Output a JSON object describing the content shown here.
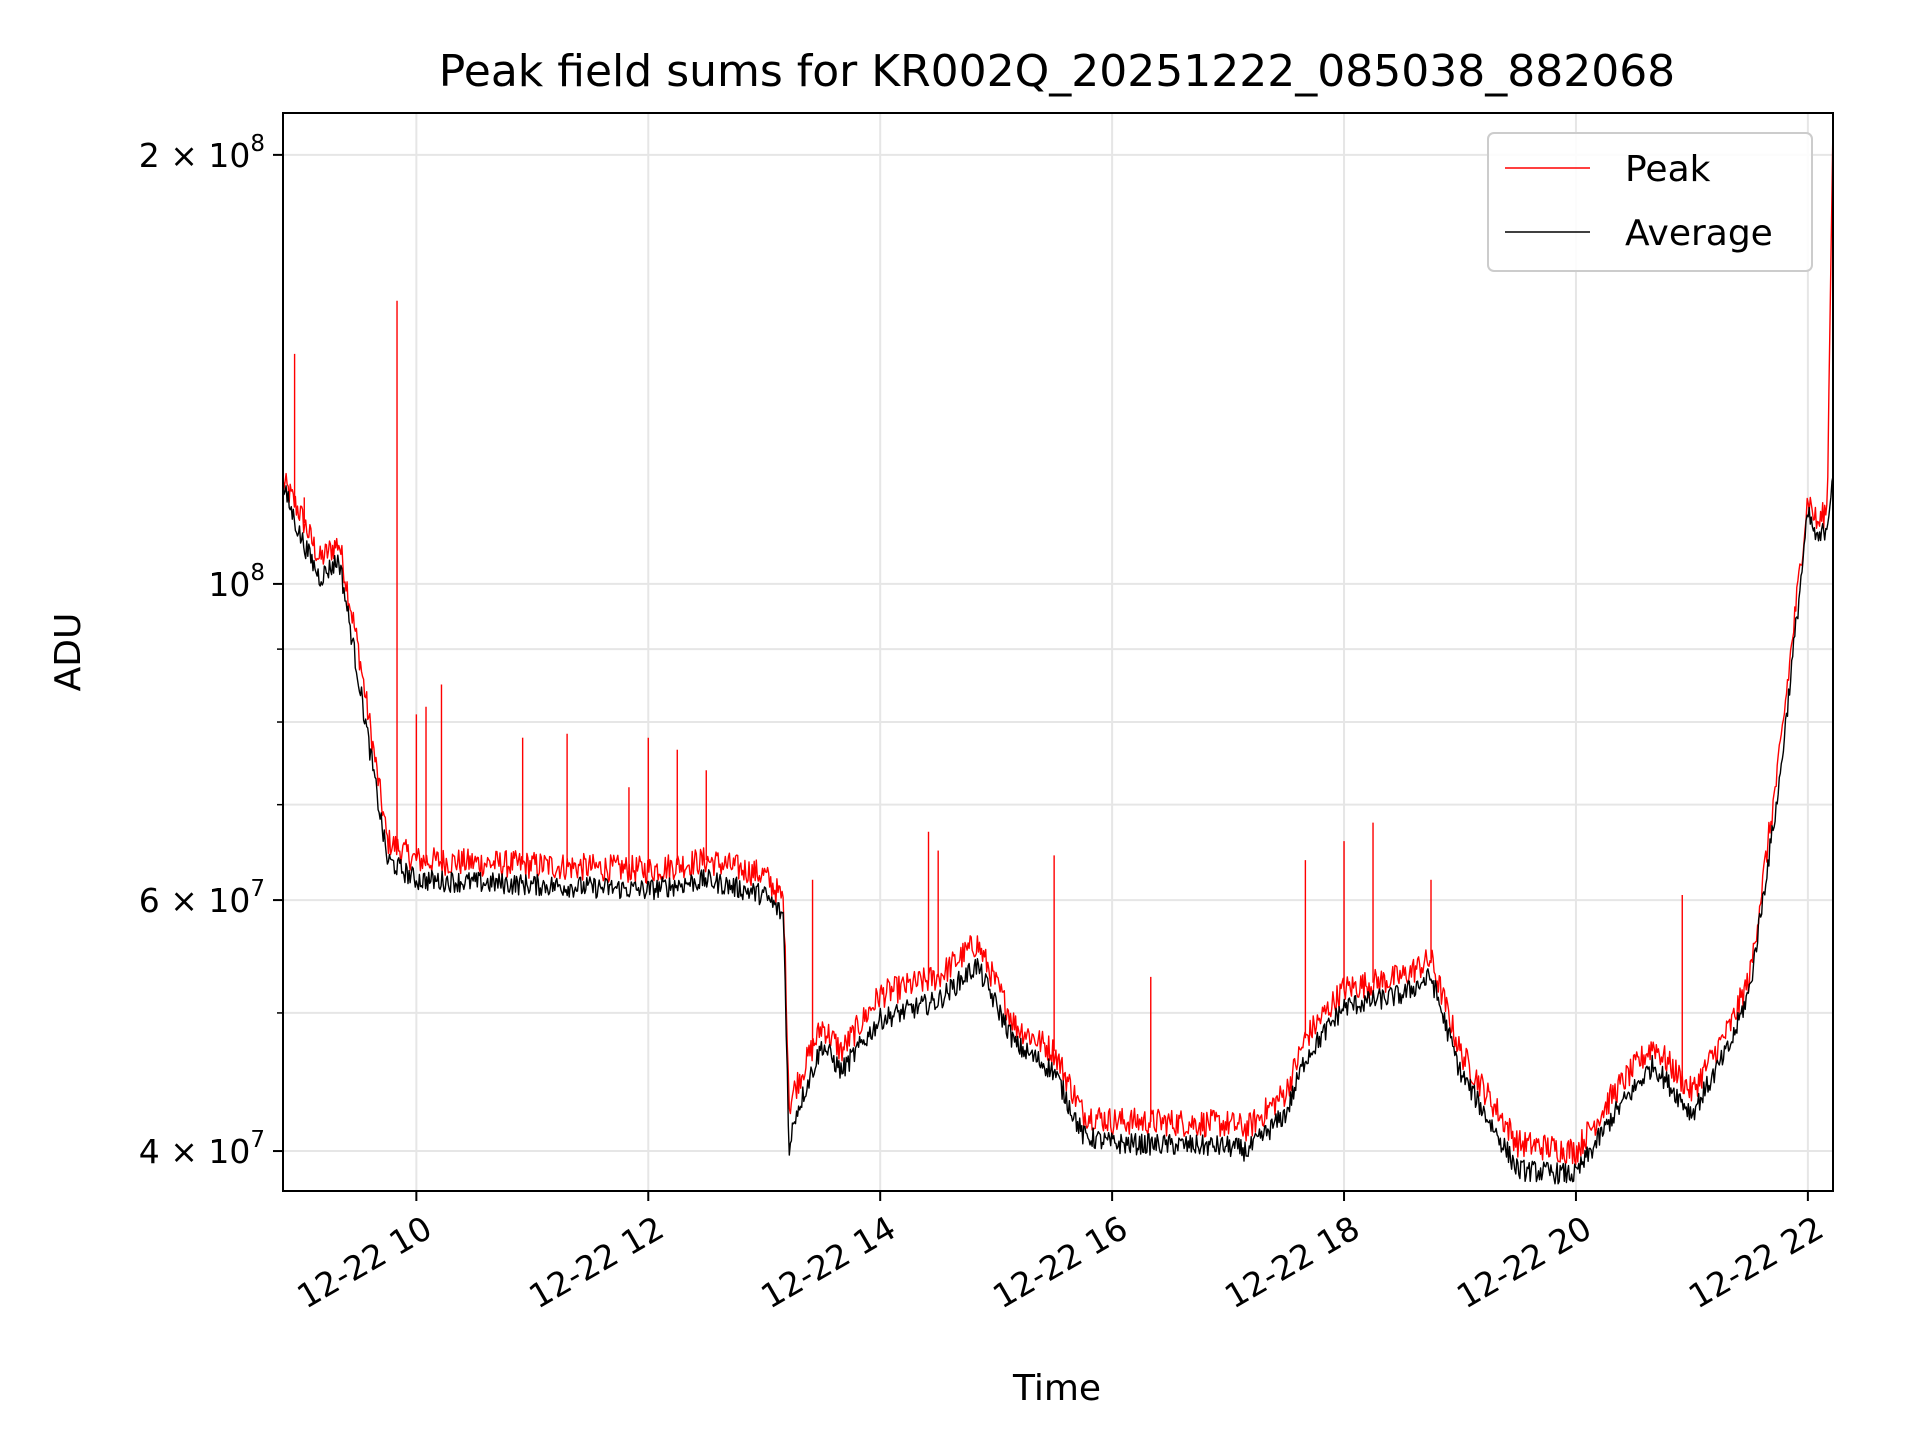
{
  "chart_data": {
    "type": "line",
    "title": "Peak field sums for KR002Q_20251222_085038_882068",
    "xlabel": "Time",
    "ylabel": "ADU",
    "yscale": "log",
    "ylim": [
      37500000,
      214000000
    ],
    "xlim": [
      "12-22 08:51",
      "12-22 22:13"
    ],
    "grid": true,
    "legend_position": "top-right",
    "x_ticks": [
      "12-22 10",
      "12-22 12",
      "12-22 14",
      "12-22 16",
      "12-22 18",
      "12-22 20",
      "12-22 22"
    ],
    "y_ticks": [
      {
        "value": 40000000,
        "mantissa": "4",
        "exp": "7"
      },
      {
        "value": 60000000,
        "mantissa": "6",
        "exp": "7"
      },
      {
        "value": 100000000,
        "mantissa": "",
        "exp": "8"
      },
      {
        "value": 200000000,
        "mantissa": "2",
        "exp": "8"
      }
    ],
    "series": [
      {
        "name": "Peak",
        "color": "#ff0000",
        "x": [
          "12-22 08:51",
          "12-22 09:00",
          "12-22 09:10",
          "12-22 09:20",
          "12-22 09:30",
          "12-22 09:45",
          "12-22 10:00",
          "12-22 11:00",
          "12-22 12:00",
          "12-22 12:30",
          "12-22 13:00",
          "12-22 13:10",
          "12-22 13:13",
          "12-22 13:15",
          "12-22 13:30",
          "12-22 13:40",
          "12-22 14:00",
          "12-22 14:30",
          "12-22 14:50",
          "12-22 15:10",
          "12-22 15:30",
          "12-22 15:45",
          "12-22 16:00",
          "12-22 17:00",
          "12-22 17:10",
          "12-22 17:30",
          "12-22 17:40",
          "12-22 18:00",
          "12-22 18:30",
          "12-22 18:45",
          "12-22 19:00",
          "12-22 19:30",
          "12-22 20:00",
          "12-22 20:20",
          "12-22 20:40",
          "12-22 21:00",
          "12-22 21:20",
          "12-22 21:30",
          "12-22 21:45",
          "12-22 22:00",
          "12-22 22:05",
          "12-22 22:10",
          "12-22 22:13"
        ],
        "values": [
          118000000,
          112000000,
          104000000,
          107000000,
          90000000,
          66000000,
          64000000,
          63500000,
          63000000,
          64000000,
          62500000,
          60000000,
          43000000,
          44000000,
          49000000,
          47000000,
          51500000,
          53000000,
          56000000,
          49000000,
          47000000,
          42500000,
          42000000,
          41800000,
          41500000,
          44000000,
          48000000,
          52000000,
          53000000,
          54500000,
          47000000,
          40500000,
          40000000,
          44000000,
          47500000,
          44000000,
          49000000,
          53000000,
          75000000,
          115000000,
          110000000,
          113000000,
          214000000
        ],
        "spikes": [
          {
            "x": "12-22 08:57",
            "value": 145000000
          },
          {
            "x": "12-22 09:02",
            "value": 115000000
          },
          {
            "x": "12-22 09:50",
            "value": 158000000
          },
          {
            "x": "12-22 10:13",
            "value": 85000000
          },
          {
            "x": "12-22 10:00",
            "value": 81000000
          },
          {
            "x": "12-22 10:05",
            "value": 82000000
          },
          {
            "x": "12-22 10:55",
            "value": 78000000
          },
          {
            "x": "12-22 11:18",
            "value": 78500000
          },
          {
            "x": "12-22 11:50",
            "value": 72000000
          },
          {
            "x": "12-22 12:00",
            "value": 78000000
          },
          {
            "x": "12-22 12:15",
            "value": 76500000
          },
          {
            "x": "12-22 12:30",
            "value": 74000000
          },
          {
            "x": "12-22 13:25",
            "value": 62000000
          },
          {
            "x": "12-22 14:25",
            "value": 67000000
          },
          {
            "x": "12-22 14:30",
            "value": 65000000
          },
          {
            "x": "12-22 15:30",
            "value": 64500000
          },
          {
            "x": "12-22 16:20",
            "value": 53000000
          },
          {
            "x": "12-22 17:40",
            "value": 64000000
          },
          {
            "x": "12-22 18:00",
            "value": 66000000
          },
          {
            "x": "12-22 18:15",
            "value": 68000000
          },
          {
            "x": "12-22 18:45",
            "value": 62000000
          },
          {
            "x": "12-22 20:55",
            "value": 60500000
          }
        ]
      },
      {
        "name": "Average",
        "color": "#000000",
        "x": [
          "12-22 08:51",
          "12-22 09:00",
          "12-22 09:10",
          "12-22 09:20",
          "12-22 09:30",
          "12-22 09:45",
          "12-22 10:00",
          "12-22 11:00",
          "12-22 12:00",
          "12-22 12:30",
          "12-22 13:00",
          "12-22 13:10",
          "12-22 13:13",
          "12-22 13:15",
          "12-22 13:30",
          "12-22 13:40",
          "12-22 14:00",
          "12-22 14:30",
          "12-22 14:50",
          "12-22 15:10",
          "12-22 15:30",
          "12-22 15:45",
          "12-22 16:00",
          "12-22 17:00",
          "12-22 17:10",
          "12-22 17:30",
          "12-22 17:40",
          "12-22 18:00",
          "12-22 18:30",
          "12-22 18:45",
          "12-22 19:00",
          "12-22 19:30",
          "12-22 20:00",
          "12-22 20:20",
          "12-22 20:40",
          "12-22 21:00",
          "12-22 21:20",
          "12-22 21:30",
          "12-22 21:45",
          "12-22 22:00",
          "12-22 22:05",
          "12-22 22:10",
          "12-22 22:13"
        ],
        "values": [
          117000000,
          108000000,
          101000000,
          104000000,
          86000000,
          64000000,
          62000000,
          61500000,
          61000000,
          62000000,
          60500000,
          58500000,
          39500000,
          42000000,
          47500000,
          45500000,
          49500000,
          51000000,
          54000000,
          47500000,
          45500000,
          41000000,
          40500000,
          40300000,
          40000000,
          42500000,
          46500000,
          50500000,
          51500000,
          53000000,
          45500000,
          38800000,
          38500000,
          42500000,
          46000000,
          42500000,
          47500000,
          52000000,
          72000000,
          112000000,
          107000000,
          110000000,
          120000000
        ]
      }
    ]
  }
}
